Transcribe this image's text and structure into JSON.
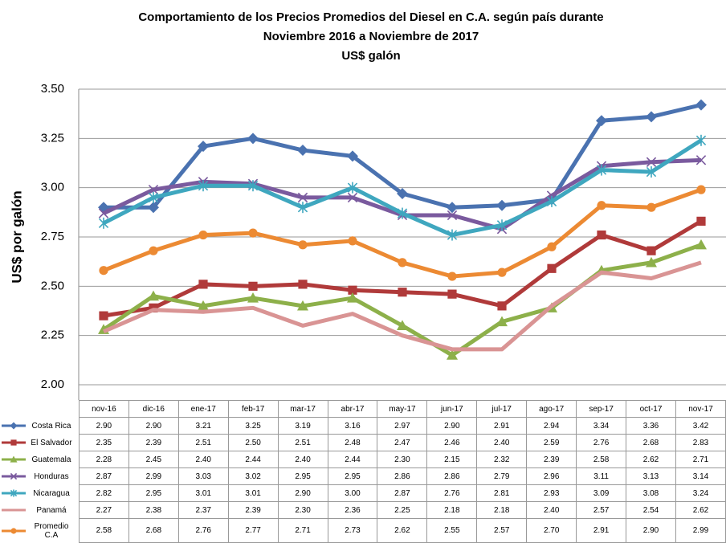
{
  "chart_data": {
    "type": "line",
    "title": [
      "Comportamiento de los Precios Promedios del Diesel en C.A. según país durante",
      "Noviembre 2016 a Noviembre de 2017",
      "US$ galón"
    ],
    "y_label": "US$ por galón",
    "categories": [
      "nov-16",
      "dic-16",
      "ene-17",
      "feb-17",
      "mar-17",
      "abr-17",
      "may-17",
      "jun-17",
      "jul-17",
      "ago-17",
      "sep-17",
      "oct-17",
      "nov-17"
    ],
    "ylim": [
      2.0,
      3.5
    ],
    "yticks": [
      {
        "value": 2.0,
        "label": "2.00"
      },
      2.25,
      {
        "value": 2.5,
        "label": "2.50"
      },
      2.75,
      {
        "value": 3.0,
        "label": "3.00"
      },
      3.25,
      {
        "value": 3.5,
        "label": "3.50"
      }
    ],
    "series": [
      {
        "name": "Costa Rica",
        "color": "#4a72b0",
        "marker": "diamond",
        "values": [
          2.9,
          2.9,
          3.21,
          3.25,
          3.19,
          3.16,
          2.97,
          2.9,
          2.91,
          2.94,
          3.34,
          3.36,
          3.42
        ],
        "value_labels": [
          "2.90",
          "2.90",
          "3.21",
          "3.25",
          "3.19",
          "3.16",
          "2.97",
          "2.90",
          "2.91",
          "2.94",
          "3.34",
          "3.36",
          "3.42"
        ]
      },
      {
        "name": "El Salvador",
        "color": "#b03a3a",
        "marker": "square",
        "values": [
          2.35,
          2.39,
          2.51,
          2.5,
          2.51,
          2.48,
          2.47,
          2.46,
          2.4,
          2.59,
          2.76,
          2.68,
          2.83
        ],
        "value_labels": [
          "2.35",
          "2.39",
          "2.51",
          "2.50",
          "2.51",
          "2.48",
          "2.47",
          "2.46",
          "2.40",
          "2.59",
          "2.76",
          "2.68",
          "2.83"
        ]
      },
      {
        "name": "Guatemala",
        "color": "#8db04a",
        "marker": "triangle",
        "values": [
          2.28,
          2.45,
          2.4,
          2.44,
          2.4,
          2.44,
          2.3,
          2.15,
          2.32,
          2.39,
          2.58,
          2.62,
          2.71
        ],
        "value_labels": [
          "2.28",
          "2.45",
          "2.40",
          "2.44",
          "2.40",
          "2.44",
          "2.30",
          "2.15",
          "2.32",
          "2.39",
          "2.58",
          "2.62",
          "2.71"
        ]
      },
      {
        "name": "Honduras",
        "color": "#7a5a9e",
        "marker": "x",
        "values": [
          2.87,
          2.99,
          3.03,
          3.02,
          2.95,
          2.95,
          2.86,
          2.86,
          2.79,
          2.96,
          3.11,
          3.13,
          3.14
        ],
        "value_labels": [
          "2.87",
          "2.99",
          "3.03",
          "3.02",
          "2.95",
          "2.95",
          "2.86",
          "2.86",
          "2.79",
          "2.96",
          "3.11",
          "3.13",
          "3.14"
        ]
      },
      {
        "name": "Nicaragua",
        "color": "#3fa7bf",
        "marker": "star",
        "values": [
          2.82,
          2.95,
          3.01,
          3.01,
          2.9,
          3.0,
          2.87,
          2.76,
          2.81,
          2.93,
          3.09,
          3.08,
          3.24
        ],
        "value_labels": [
          "2.82",
          "2.95",
          "3.01",
          "3.01",
          "2.90",
          "3.00",
          "2.87",
          "2.76",
          "2.81",
          "2.93",
          "3.09",
          "3.08",
          "3.24"
        ]
      },
      {
        "name": "Panamá",
        "color": "#d99494",
        "marker": "none",
        "values": [
          2.27,
          2.38,
          2.37,
          2.39,
          2.3,
          2.36,
          2.25,
          2.18,
          2.18,
          2.4,
          2.57,
          2.54,
          2.62
        ],
        "value_labels": [
          "2.27",
          "2.38",
          "2.37",
          "2.39",
          "2.30",
          "2.36",
          "2.25",
          "2.18",
          "2.18",
          "2.40",
          "2.57",
          "2.54",
          "2.62"
        ]
      },
      {
        "name": "Promedio C.A",
        "color": "#ec8a33",
        "marker": "circle",
        "values": [
          2.58,
          2.68,
          2.76,
          2.77,
          2.71,
          2.73,
          2.62,
          2.55,
          2.57,
          2.7,
          2.91,
          2.9,
          2.99
        ],
        "value_labels": [
          "2.58",
          "2.68",
          "2.76",
          "2.77",
          "2.71",
          "2.73",
          "2.62",
          "2.55",
          "2.57",
          "2.70",
          "2.91",
          "2.90",
          "2.99"
        ]
      }
    ]
  }
}
